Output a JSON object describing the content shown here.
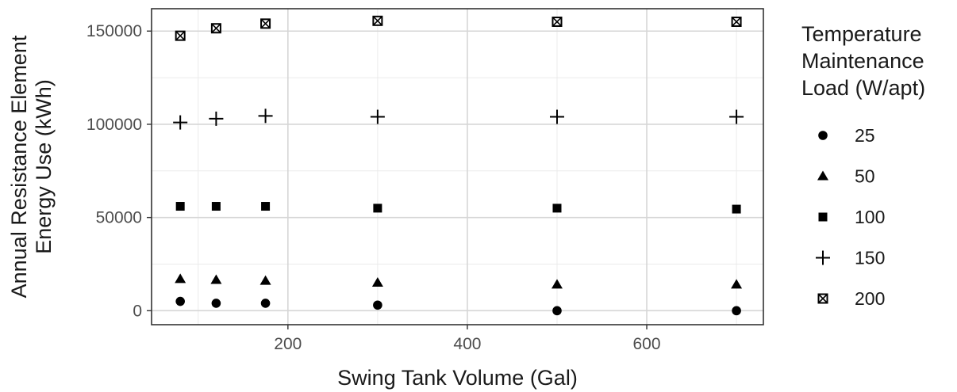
{
  "chart_data": {
    "type": "scatter",
    "xlabel": "Swing Tank Volume (Gal)",
    "ylabel_lines": [
      "Annual Resistance Element",
      "Energy Use (kWh)"
    ],
    "xlim": [
      48,
      730
    ],
    "ylim": [
      -7500,
      162000
    ],
    "x_ticks": [
      200,
      400,
      600
    ],
    "y_ticks": [
      0,
      50000,
      100000,
      150000
    ],
    "grid": true,
    "legend": {
      "position": "right",
      "title_lines": [
        "Temperature",
        "Maintenance",
        "Load (W/apt)"
      ]
    },
    "x": [
      80,
      120,
      175,
      300,
      500,
      700
    ],
    "series": [
      {
        "name": "25",
        "marker": "circle",
        "values": [
          5000,
          4000,
          4000,
          3000,
          0,
          0
        ]
      },
      {
        "name": "50",
        "marker": "triangle",
        "values": [
          17000,
          16500,
          16000,
          15000,
          14000,
          14000
        ]
      },
      {
        "name": "100",
        "marker": "square",
        "values": [
          56000,
          56000,
          56000,
          55000,
          55000,
          54500
        ]
      },
      {
        "name": "150",
        "marker": "plus",
        "values": [
          101000,
          103000,
          104500,
          104000,
          104000,
          104000
        ]
      },
      {
        "name": "200",
        "marker": "boxed-x-square",
        "values": [
          147500,
          151500,
          154000,
          155500,
          155000,
          155000
        ]
      }
    ]
  }
}
